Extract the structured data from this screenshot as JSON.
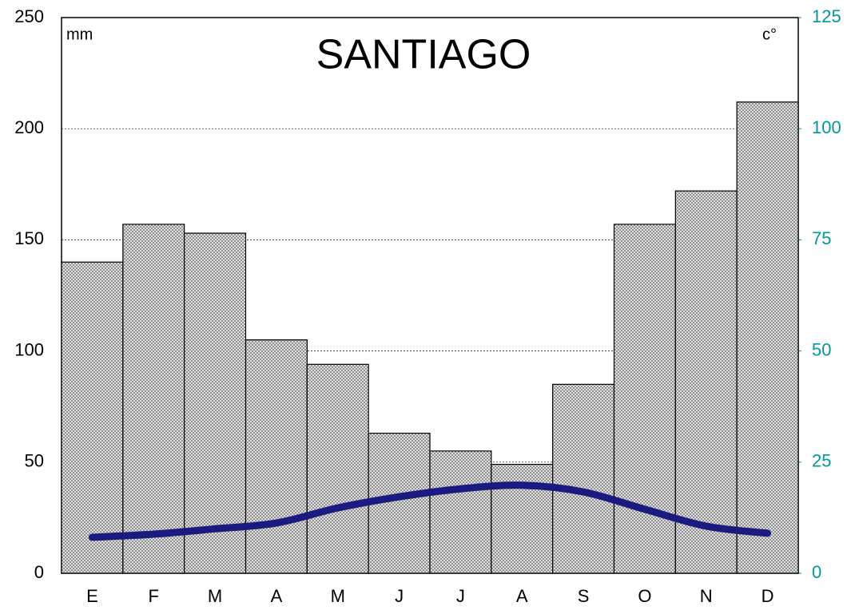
{
  "chart_data": {
    "type": "bar",
    "title": "SANTIAGO",
    "y_label": "mm",
    "y2_label": "c°",
    "categories": [
      "E",
      "F",
      "M",
      "A",
      "M",
      "J",
      "J",
      "A",
      "S",
      "O",
      "N",
      "D"
    ],
    "series": [
      {
        "type": "bar",
        "color": "#808080",
        "values": [
          140,
          157,
          153,
          105,
          94,
          63,
          55,
          49,
          85,
          157,
          172,
          212
        ]
      },
      {
        "type": "line",
        "axis": "y2",
        "color": "#1a1a80",
        "values": [
          8.1,
          8.8,
          10,
          11.3,
          14.7,
          17.2,
          19,
          19.8,
          18.3,
          14.4,
          10.6,
          9
        ]
      }
    ],
    "ylim": [
      0,
      250
    ],
    "yticks": [
      0,
      50,
      100,
      150,
      200,
      250
    ],
    "y2lim": [
      0,
      125
    ],
    "y2ticks": [
      0,
      25,
      50,
      75,
      100,
      125
    ],
    "y2_color": "#009999",
    "grid": true
  }
}
